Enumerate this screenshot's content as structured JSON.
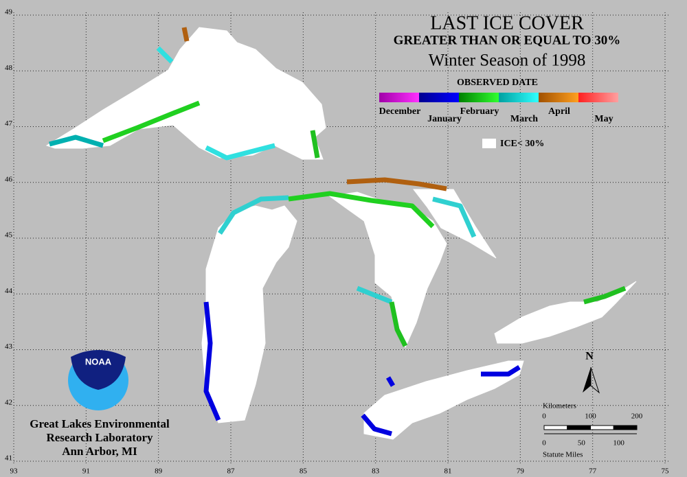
{
  "header": {
    "title": "LAST ICE COVER",
    "subtitle": "GREATER THAN OR EQUAL TO 30%",
    "season": "Winter Season of 1998"
  },
  "legend": {
    "title": "OBSERVED DATE",
    "items": [
      {
        "label": "December",
        "colors": [
          "#a000a8",
          "#ff30ff"
        ]
      },
      {
        "label": "January",
        "colors": [
          "#000090",
          "#0000ff"
        ]
      },
      {
        "label": "February",
        "colors": [
          "#008000",
          "#30ff30"
        ]
      },
      {
        "label": "March",
        "colors": [
          "#00a0a0",
          "#30ffff"
        ]
      },
      {
        "label": "April",
        "colors": [
          "#a05000",
          "#ffa020"
        ]
      },
      {
        "label": "May",
        "colors": [
          "#ff2020",
          "#ffa0a0"
        ]
      }
    ],
    "ice_label": "ICE< 30%"
  },
  "map": {
    "latitudes": [
      49,
      48,
      47,
      46,
      45,
      44,
      43,
      42,
      41
    ],
    "longitudes": [
      93,
      91,
      89,
      87,
      85,
      83,
      81,
      79,
      77,
      75
    ],
    "north": "N"
  },
  "scale": {
    "km_title": "Kilometers",
    "km_ticks": [
      0,
      100,
      200
    ],
    "mi_ticks": [
      0,
      50,
      100
    ],
    "mi_title": "Statute Miles"
  },
  "logo": {
    "text": "NOAA"
  },
  "credit": [
    "Great Lakes Environmental",
    "Research Laboratory",
    "Ann Arbor, MI"
  ]
}
